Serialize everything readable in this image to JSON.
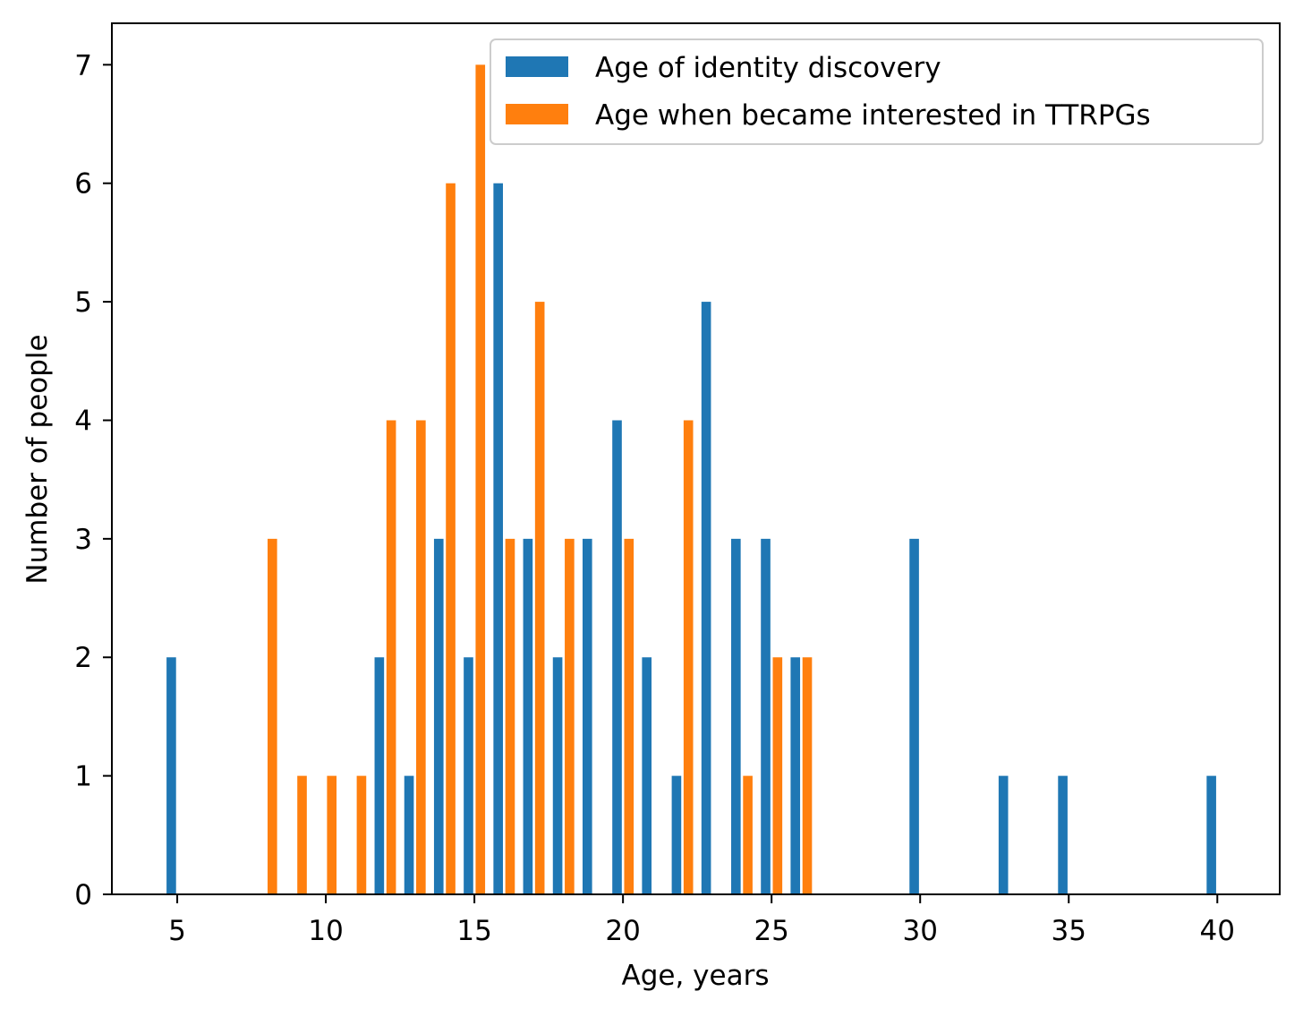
{
  "chart_data": {
    "type": "bar",
    "title": "",
    "xlabel": "Age, years",
    "ylabel": "Number of people",
    "xlim": [
      2.8,
      42.1
    ],
    "ylim": [
      0,
      7.35
    ],
    "xticks": [
      5,
      10,
      15,
      20,
      25,
      30,
      35,
      40
    ],
    "yticks": [
      0,
      1,
      2,
      3,
      4,
      5,
      6,
      7
    ],
    "grid": false,
    "legend_position": "top-right",
    "bar_width_years": 0.32,
    "series": [
      {
        "name": "Age of identity discovery",
        "color": "#1f77b4",
        "points": [
          {
            "x": 4.8,
            "y": 2
          },
          {
            "x": 11.8,
            "y": 2
          },
          {
            "x": 12.8,
            "y": 1
          },
          {
            "x": 13.8,
            "y": 3
          },
          {
            "x": 14.8,
            "y": 2
          },
          {
            "x": 15.8,
            "y": 6
          },
          {
            "x": 16.8,
            "y": 3
          },
          {
            "x": 17.8,
            "y": 2
          },
          {
            "x": 18.8,
            "y": 3
          },
          {
            "x": 19.8,
            "y": 4
          },
          {
            "x": 20.8,
            "y": 2
          },
          {
            "x": 21.8,
            "y": 1
          },
          {
            "x": 22.8,
            "y": 5
          },
          {
            "x": 23.8,
            "y": 3
          },
          {
            "x": 24.8,
            "y": 3
          },
          {
            "x": 25.8,
            "y": 2
          },
          {
            "x": 29.8,
            "y": 3
          },
          {
            "x": 32.8,
            "y": 1
          },
          {
            "x": 34.8,
            "y": 1
          },
          {
            "x": 39.8,
            "y": 1
          }
        ]
      },
      {
        "name": "Age when became interested in TTRPGs",
        "color": "#ff7f0e",
        "points": [
          {
            "x": 8.2,
            "y": 3
          },
          {
            "x": 9.2,
            "y": 1
          },
          {
            "x": 10.2,
            "y": 1
          },
          {
            "x": 11.2,
            "y": 1
          },
          {
            "x": 12.2,
            "y": 4
          },
          {
            "x": 13.2,
            "y": 4
          },
          {
            "x": 14.2,
            "y": 6
          },
          {
            "x": 15.2,
            "y": 7
          },
          {
            "x": 16.2,
            "y": 3
          },
          {
            "x": 17.2,
            "y": 5
          },
          {
            "x": 18.2,
            "y": 3
          },
          {
            "x": 20.2,
            "y": 3
          },
          {
            "x": 22.2,
            "y": 4
          },
          {
            "x": 24.2,
            "y": 1
          },
          {
            "x": 25.2,
            "y": 2
          },
          {
            "x": 26.2,
            "y": 2
          }
        ]
      }
    ]
  }
}
